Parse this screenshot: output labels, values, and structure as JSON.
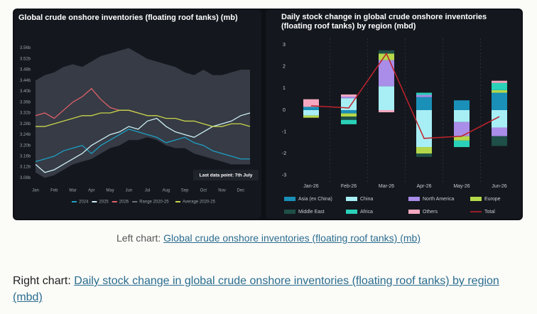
{
  "chart_data": [
    {
      "type": "line",
      "title": "Global crude onshore inventories (floating roof tanks) (mb)",
      "annotation": "Last data point: 7th July",
      "categories": [
        "Jan",
        null,
        "Feb",
        null,
        "Mar",
        null,
        "Apr",
        null,
        "May",
        null,
        "Jun",
        null,
        "Jul",
        null,
        "Aug",
        null,
        "Sep",
        null,
        "Oct",
        null,
        "Nov",
        null,
        "Dec",
        null
      ],
      "ylim": [
        3.06,
        3.58
      ],
      "yticks": [
        {
          "value": 3.08,
          "label": "3.08b"
        },
        {
          "value": 3.12,
          "label": "3.12b"
        },
        {
          "value": 3.16,
          "label": "3.16b"
        },
        {
          "value": 3.2,
          "label": "3.20b"
        },
        {
          "value": 3.24,
          "label": "3.24b"
        },
        {
          "value": 3.28,
          "label": "3.28b"
        },
        {
          "value": 3.32,
          "label": "3.32b"
        },
        {
          "value": 3.36,
          "label": "3.36b"
        },
        {
          "value": 3.4,
          "label": "3.40b"
        },
        {
          "value": 3.44,
          "label": "3.44b"
        },
        {
          "value": 3.48,
          "label": "3.48b"
        },
        {
          "value": 3.52,
          "label": "3.52b"
        },
        {
          "value": 3.56,
          "label": "3.56b"
        }
      ],
      "grid": false,
      "series": [
        {
          "name": "2024",
          "color": "#1e9fc4",
          "values": [
            3.14,
            3.15,
            3.16,
            3.18,
            3.19,
            3.2,
            3.17,
            3.2,
            3.22,
            3.24,
            3.26,
            3.25,
            3.24,
            3.23,
            3.21,
            3.22,
            3.23,
            3.21,
            3.2,
            3.18,
            3.17,
            3.16,
            3.15,
            3.15
          ]
        },
        {
          "name": "2025",
          "color": "#cdeef5",
          "values": [
            3.13,
            3.1,
            3.11,
            3.13,
            3.15,
            3.17,
            3.2,
            3.22,
            3.24,
            3.25,
            3.27,
            3.26,
            3.29,
            3.3,
            3.27,
            3.25,
            3.24,
            3.23,
            3.25,
            3.27,
            3.28,
            3.29,
            3.31,
            3.32
          ]
        },
        {
          "name": "2026",
          "color": "#e0606a",
          "values": [
            3.31,
            3.32,
            3.3,
            3.33,
            3.36,
            3.38,
            3.41,
            3.37,
            3.34,
            3.33,
            3.33,
            3.32,
            null,
            null,
            null,
            null,
            null,
            null,
            null,
            null,
            null,
            null,
            null,
            null
          ]
        },
        {
          "name": "Range 2020-25",
          "color": "#3c424c",
          "low": [
            3.1,
            3.08,
            3.09,
            3.11,
            3.13,
            3.14,
            3.15,
            3.17,
            3.19,
            3.2,
            3.22,
            3.22,
            3.23,
            3.22,
            3.2,
            3.19,
            3.19,
            3.17,
            3.16,
            3.15,
            3.14,
            3.13,
            3.13,
            3.13
          ],
          "high": [
            3.44,
            3.46,
            3.47,
            3.49,
            3.5,
            3.49,
            3.51,
            3.53,
            3.54,
            3.55,
            3.56,
            3.54,
            3.52,
            3.51,
            3.5,
            3.49,
            3.47,
            3.46,
            3.48,
            3.46,
            3.46,
            3.47,
            3.48,
            3.48
          ]
        },
        {
          "name": "Average 2020-25",
          "color": "#c8d44a",
          "values": [
            3.27,
            3.27,
            3.28,
            3.29,
            3.3,
            3.31,
            3.31,
            3.32,
            3.32,
            3.33,
            3.33,
            3.32,
            3.31,
            3.31,
            3.3,
            3.3,
            3.29,
            3.29,
            3.28,
            3.27,
            3.27,
            3.28,
            3.28,
            3.27
          ]
        }
      ]
    },
    {
      "type": "bar",
      "stacked": true,
      "title": "Daily stock change in global crude onshore inventories (floating roof tanks) by region (mbd)",
      "categories": [
        "Jan-26",
        "Feb-26",
        "Mar-26",
        "Apr-26",
        "May-26",
        "Jun-26"
      ],
      "ylim": [
        -3.3,
        3.3
      ],
      "yticks": [
        -3,
        -2,
        -1,
        0,
        1,
        2,
        3
      ],
      "grid": false,
      "series": [
        {
          "name": "Asia (ex China)",
          "color": "#1a8fb8",
          "values": [
            0.15,
            -0.15,
            0,
            0.6,
            0.45,
            0.8
          ]
        },
        {
          "name": "China",
          "color": "#a8eef5",
          "values": [
            -0.25,
            0.55,
            1.1,
            -1.7,
            -0.55,
            -0.8
          ]
        },
        {
          "name": "North America",
          "color": "#a98de8",
          "values": [
            0,
            0.07,
            1.2,
            0.1,
            -0.65,
            -0.4
          ]
        },
        {
          "name": "Europe",
          "color": "#b5d84a",
          "values": [
            -0.1,
            -0.15,
            0.3,
            -0.3,
            -0.2,
            0.12
          ]
        },
        {
          "name": "Middle East",
          "color": "#1e4f48",
          "values": [
            0,
            -0.15,
            0.15,
            -0.15,
            0,
            -0.45
          ]
        },
        {
          "name": "Africa",
          "color": "#2ad1b8",
          "values": [
            0,
            -0.2,
            0,
            0.1,
            -0.3,
            0.33
          ]
        },
        {
          "name": "Others",
          "color": "#f5a8c0",
          "values": [
            0.35,
            0.1,
            -0.1,
            0,
            0,
            0.1
          ]
        },
        {
          "name": "Total",
          "color": "#c0222c",
          "type": "line",
          "values": [
            0.2,
            0.1,
            2.6,
            -1.3,
            -1.2,
            -0.3
          ]
        }
      ]
    }
  ],
  "captions": [
    {
      "prefix": "Left chart:",
      "link": "Global crude onshore inventories (floating roof tanks) (mb)"
    },
    {
      "prefix": "Right chart:",
      "link": "Daily stock change in global crude onshore inventories (floating roof tanks) by region (mbd)"
    }
  ]
}
